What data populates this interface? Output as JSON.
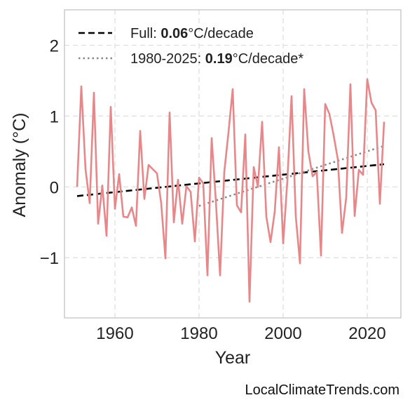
{
  "chart_data": {
    "type": "line",
    "xlabel": "Year",
    "ylabel": "Anomaly (°C)",
    "xlim": [
      1948,
      2028
    ],
    "ylim": [
      -1.85,
      2.5
    ],
    "xticks": [
      1960,
      1980,
      2000,
      2020
    ],
    "yticks": [
      -1,
      0,
      1,
      2
    ],
    "ytick_labels": [
      "−1",
      "0",
      "1",
      "2"
    ],
    "grid": true,
    "legend_position": "top-left",
    "legend": [
      {
        "prefix": "Full: ",
        "value": "0.06",
        "suffix": "°C/decade",
        "style": "dashed"
      },
      {
        "prefix": "1980-2025: ",
        "value": "0.19",
        "suffix": "°C/decade*",
        "style": "dotted"
      }
    ],
    "colors": {
      "anomaly": "#e8878a",
      "full_trend": "#000000",
      "recent_trend": "#888888",
      "grid": "#dddddd",
      "frame": "#cccccc"
    },
    "series": [
      {
        "role": "anomaly",
        "x": [
          1951,
          1952,
          1953,
          1954,
          1955,
          1956,
          1957,
          1958,
          1959,
          1960,
          1961,
          1962,
          1963,
          1964,
          1965,
          1966,
          1967,
          1968,
          1969,
          1970,
          1971,
          1972,
          1973,
          1974,
          1975,
          1976,
          1977,
          1978,
          1979,
          1980,
          1981,
          1982,
          1983,
          1984,
          1985,
          1986,
          1987,
          1988,
          1989,
          1990,
          1991,
          1992,
          1993,
          1994,
          1995,
          1996,
          1997,
          1998,
          1999,
          2000,
          2001,
          2002,
          2003,
          2004,
          2005,
          2006,
          2007,
          2008,
          2009,
          2010,
          2011,
          2012,
          2013,
          2014,
          2015,
          2016,
          2017,
          2018,
          2019,
          2020,
          2021,
          2022,
          2023,
          2024
        ],
        "values": [
          0.0,
          1.42,
          0.25,
          -0.23,
          1.33,
          -0.52,
          0.02,
          -0.69,
          1.13,
          -0.31,
          0.18,
          -0.42,
          -0.43,
          -0.29,
          -0.55,
          0.79,
          -0.17,
          0.31,
          0.25,
          0.19,
          -0.23,
          -1.01,
          1.05,
          -0.5,
          0.1,
          -0.52,
          0.01,
          -0.07,
          -0.77,
          0.13,
          0.05,
          -1.25,
          0.69,
          -0.2,
          -1.25,
          0.21,
          0.77,
          1.38,
          -0.26,
          -0.36,
          0.74,
          -1.62,
          0.28,
          0.0,
          0.92,
          -0.42,
          -0.78,
          -0.35,
          0.56,
          -0.8,
          0.09,
          1.28,
          -0.41,
          -1.08,
          1.38,
          0.5,
          0.15,
          0.21,
          -0.97,
          1.17,
          1.03,
          0.73,
          0.39,
          -0.65,
          -0.15,
          1.45,
          -0.41,
          0.24,
          0.17,
          1.52,
          1.19,
          1.08,
          -0.24,
          0.92
        ]
      },
      {
        "role": "full_trend",
        "x": [
          1951,
          2024
        ],
        "values": [
          -0.13,
          0.32
        ]
      },
      {
        "role": "recent_trend",
        "x": [
          1980,
          2024
        ],
        "values": [
          -0.27,
          0.58
        ]
      }
    ]
  },
  "footer": {
    "credit": "LocalClimateTrends.com"
  }
}
